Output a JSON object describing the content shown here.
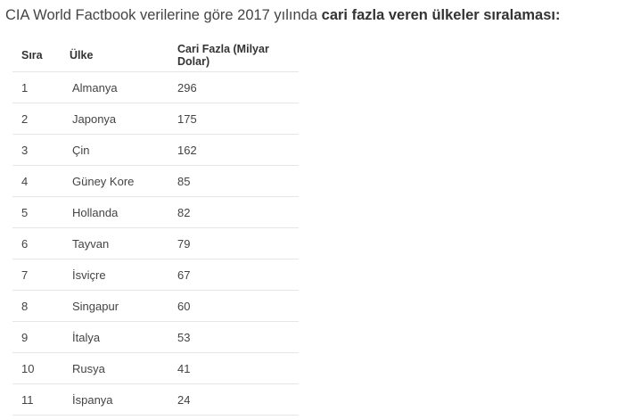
{
  "heading": {
    "prefix": "CIA World Factbook verilerine göre 2017 yılında ",
    "emphasis": "cari fazla veren ülkeler sıralaması:"
  },
  "table": {
    "headers": [
      "Sıra",
      "Ülke",
      "Cari Fazla (Milyar Dolar)"
    ],
    "rows": [
      {
        "rank": "1",
        "country": "Almanya",
        "value": "296"
      },
      {
        "rank": "2",
        "country": "Japonya",
        "value": "175"
      },
      {
        "rank": "3",
        "country": "Çin",
        "value": "162"
      },
      {
        "rank": "4",
        "country": "Güney Kore",
        "value": "85"
      },
      {
        "rank": "5",
        "country": "Hollanda",
        "value": "82"
      },
      {
        "rank": "6",
        "country": "Tayvan",
        "value": "79"
      },
      {
        "rank": "7",
        "country": "İsviçre",
        "value": "67"
      },
      {
        "rank": "8",
        "country": "Singapur",
        "value": "60"
      },
      {
        "rank": "9",
        "country": "İtalya",
        "value": "53"
      },
      {
        "rank": "10",
        "country": "Rusya",
        "value": "41"
      },
      {
        "rank": "11",
        "country": "İspanya",
        "value": "24"
      }
    ]
  }
}
